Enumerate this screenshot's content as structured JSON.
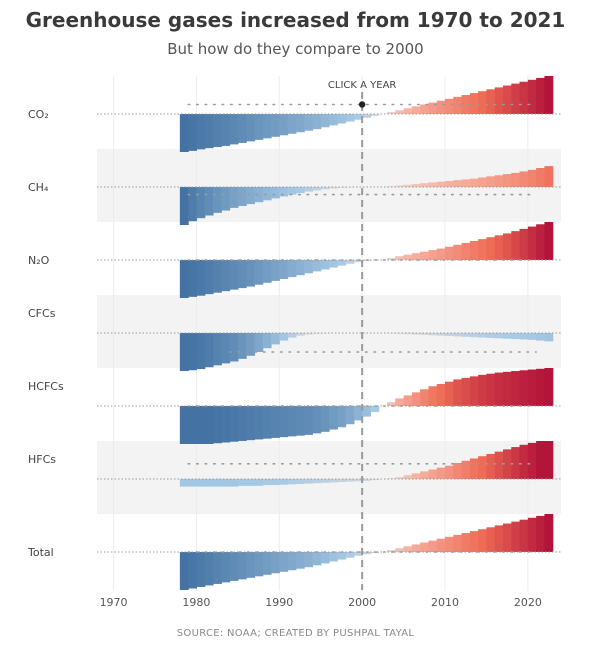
{
  "header": {
    "title": "Greenhouse gases increased from 1970 to 2021",
    "subtitle": "But how do they compare to 2000"
  },
  "footer": {
    "source": "SOURCE: NOAA; CREATED BY PUSHPAL TAYAL"
  },
  "controls": {
    "click_year_label": "CLICK A YEAR",
    "selected_year": 2000
  },
  "colors": {
    "negative_strong": "#4372a3",
    "negative_light": "#a9cbe6",
    "neutral": "#e6dada",
    "positive_light": "#f7b2a2",
    "positive_mid": "#ee6b55",
    "positive_strong": "#b2143a",
    "band": "#f3f3f3",
    "reference_line": "#999999"
  },
  "chart_data": {
    "type": "area",
    "xlim": [
      1968,
      2024
    ],
    "x_ticks": [
      1970,
      1980,
      1990,
      2000,
      2010,
      2020
    ],
    "x_tick_labels": [
      "1970",
      "1980",
      "1990",
      "2000",
      "2010",
      "2020"
    ],
    "reference_year": 2000,
    "title": "Greenhouse gases increased from 1970 to 2021",
    "subtitle": "But how do they compare to 2000",
    "legend": "none",
    "series": [
      {
        "name": "CO₂",
        "start_year": 1978,
        "end_year": 2022,
        "dot_level": 0.25,
        "values": [
          -1.0,
          -0.97,
          -0.93,
          -0.9,
          -0.87,
          -0.84,
          -0.8,
          -0.76,
          -0.72,
          -0.68,
          -0.64,
          -0.6,
          -0.56,
          -0.52,
          -0.48,
          -0.44,
          -0.4,
          -0.35,
          -0.3,
          -0.25,
          -0.2,
          -0.15,
          -0.1,
          -0.05,
          0,
          0.05,
          0.1,
          0.15,
          0.2,
          0.25,
          0.3,
          0.35,
          0.4,
          0.45,
          0.5,
          0.55,
          0.6,
          0.65,
          0.7,
          0.75,
          0.8,
          0.85,
          0.9,
          0.95,
          1.0
        ]
      },
      {
        "name": "CH₄",
        "start_year": 1978,
        "end_year": 2022,
        "dot_level": -0.2,
        "values": [
          -1.0,
          -0.9,
          -0.82,
          -0.75,
          -0.68,
          -0.62,
          -0.55,
          -0.5,
          -0.45,
          -0.4,
          -0.35,
          -0.3,
          -0.25,
          -0.2,
          -0.16,
          -0.12,
          -0.09,
          -0.06,
          -0.04,
          -0.02,
          -0.01,
          0,
          0,
          0,
          0,
          0.02,
          0.04,
          0.06,
          0.08,
          0.1,
          0.12,
          0.14,
          0.16,
          0.18,
          0.2,
          0.22,
          0.25,
          0.28,
          0.31,
          0.34,
          0.37,
          0.41,
          0.45,
          0.5,
          0.55
        ]
      },
      {
        "name": "N₂O",
        "start_year": 1978,
        "end_year": 2022,
        "dot_level": 0.0,
        "values": [
          -1.0,
          -0.97,
          -0.94,
          -0.9,
          -0.86,
          -0.82,
          -0.78,
          -0.74,
          -0.7,
          -0.65,
          -0.6,
          -0.55,
          -0.5,
          -0.45,
          -0.4,
          -0.35,
          -0.3,
          -0.25,
          -0.2,
          -0.15,
          -0.1,
          -0.06,
          -0.03,
          -0.01,
          0,
          0.05,
          0.1,
          0.14,
          0.18,
          0.22,
          0.26,
          0.3,
          0.35,
          0.4,
          0.45,
          0.5,
          0.55,
          0.6,
          0.65,
          0.7,
          0.76,
          0.82,
          0.88,
          0.94,
          1.0
        ]
      },
      {
        "name": "CFCs",
        "start_year": 1978,
        "end_year": 2022,
        "dot_level": -0.5,
        "values": [
          -1.0,
          -0.98,
          -0.95,
          -0.9,
          -0.85,
          -0.8,
          -0.75,
          -0.68,
          -0.6,
          -0.5,
          -0.4,
          -0.3,
          -0.2,
          -0.12,
          -0.07,
          -0.04,
          -0.02,
          -0.01,
          0,
          0,
          0,
          0,
          0,
          0,
          0,
          -0.01,
          -0.02,
          -0.03,
          -0.04,
          -0.05,
          -0.06,
          -0.07,
          -0.08,
          -0.09,
          -0.1,
          -0.11,
          -0.12,
          -0.13,
          -0.14,
          -0.15,
          -0.16,
          -0.17,
          -0.18,
          -0.2,
          -0.22
        ]
      },
      {
        "name": "HCFCs",
        "start_year": 1978,
        "end_year": 2022,
        "dot_level": 0.0,
        "values": [
          -1.0,
          -1.0,
          -1.0,
          -1.0,
          -0.98,
          -0.96,
          -0.94,
          -0.92,
          -0.9,
          -0.88,
          -0.86,
          -0.84,
          -0.82,
          -0.8,
          -0.78,
          -0.76,
          -0.72,
          -0.68,
          -0.62,
          -0.56,
          -0.48,
          -0.38,
          -0.28,
          -0.16,
          0,
          0.1,
          0.2,
          0.28,
          0.36,
          0.44,
          0.52,
          0.58,
          0.64,
          0.7,
          0.74,
          0.78,
          0.82,
          0.85,
          0.88,
          0.9,
          0.92,
          0.94,
          0.96,
          0.98,
          1.0
        ]
      },
      {
        "name": "HFCs",
        "start_year": 1978,
        "end_year": 2022,
        "dot_level": 0.4,
        "values": [
          -0.2,
          -0.2,
          -0.2,
          -0.2,
          -0.2,
          -0.2,
          -0.2,
          -0.18,
          -0.18,
          -0.18,
          -0.16,
          -0.16,
          -0.15,
          -0.14,
          -0.13,
          -0.12,
          -0.11,
          -0.1,
          -0.09,
          -0.08,
          -0.07,
          -0.06,
          -0.05,
          -0.03,
          0,
          0.02,
          0.05,
          0.1,
          0.15,
          0.2,
          0.25,
          0.3,
          0.35,
          0.42,
          0.48,
          0.54,
          0.6,
          0.66,
          0.72,
          0.78,
          0.84,
          0.9,
          0.95,
          1.0,
          1.0
        ]
      },
      {
        "name": "Total",
        "start_year": 1978,
        "end_year": 2022,
        "dot_level": 0.0,
        "values": [
          -1.0,
          -0.96,
          -0.92,
          -0.88,
          -0.84,
          -0.8,
          -0.76,
          -0.72,
          -0.68,
          -0.64,
          -0.6,
          -0.56,
          -0.52,
          -0.48,
          -0.44,
          -0.4,
          -0.35,
          -0.3,
          -0.25,
          -0.2,
          -0.15,
          -0.1,
          -0.06,
          -0.03,
          0,
          0.05,
          0.1,
          0.15,
          0.2,
          0.25,
          0.3,
          0.35,
          0.4,
          0.45,
          0.5,
          0.55,
          0.6,
          0.65,
          0.7,
          0.75,
          0.8,
          0.85,
          0.9,
          0.95,
          1.0
        ]
      }
    ]
  }
}
